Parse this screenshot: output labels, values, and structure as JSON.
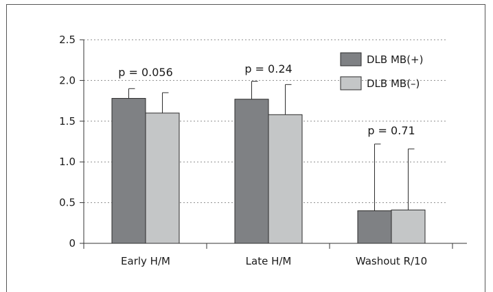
{
  "chart_data": {
    "type": "bar",
    "categories": [
      "Early H/M",
      "Late H/M",
      "Washout R/10"
    ],
    "series": [
      {
        "name": "DLB MB(+)",
        "values": [
          1.78,
          1.77,
          0.4
        ],
        "errors": [
          0.12,
          0.22,
          0.82
        ],
        "color": "#7f8184"
      },
      {
        "name": "DLB MB(–)",
        "values": [
          1.6,
          1.58,
          0.41
        ],
        "errors": [
          0.25,
          0.37,
          0.75
        ],
        "color": "#c4c6c7"
      }
    ],
    "annotations": [
      "p = 0.056",
      "p = 0.24",
      "p = 0.71"
    ],
    "ylim": [
      0,
      2.5
    ],
    "yticks": [
      "0",
      "0.5",
      "1.0",
      "1.5",
      "2.0",
      "2.5"
    ],
    "ytick_values": [
      0,
      0.5,
      1.0,
      1.5,
      2.0,
      2.5
    ],
    "grid": "horizontal-dotted",
    "legend_position": "top-right",
    "title": "",
    "xlabel": "",
    "ylabel": ""
  }
}
